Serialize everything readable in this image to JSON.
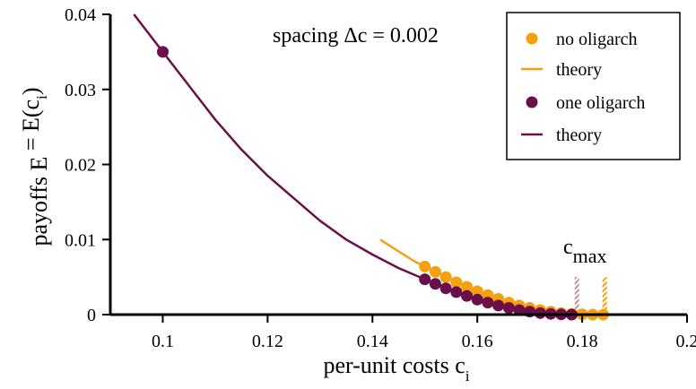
{
  "chart_data": {
    "type": "scatter",
    "xlabel": {
      "text": "per-unit costs  c",
      "sub": "i"
    },
    "ylabel": {
      "text": "payoffs  E",
      "sub1": "i",
      "mid": " = E(c",
      "sub2": "i",
      "end": ")"
    },
    "xlim": [
      0.09,
      0.2
    ],
    "ylim": [
      0,
      0.04
    ],
    "xticks": [
      0.1,
      0.12,
      0.14,
      0.16,
      0.18,
      0.2
    ],
    "xtick_labels": [
      "0.1",
      "0.12",
      "0.14",
      "0.16",
      "0.18",
      "0.2"
    ],
    "yticks": [
      0,
      0.01,
      0.02,
      0.03,
      0.04
    ],
    "ytick_labels": [
      "0",
      "0.01",
      "0.02",
      "0.03",
      "0.04"
    ],
    "grid": false,
    "legend_position": "top-right",
    "annotation": "spacing Δc = 0.002",
    "cmax_label": {
      "main": "c",
      "sub": "max"
    },
    "series": [
      {
        "name": "no oligarch",
        "kind": "points",
        "color": "#F5A00F",
        "x": [
          0.15,
          0.152,
          0.154,
          0.156,
          0.158,
          0.16,
          0.162,
          0.164,
          0.166,
          0.168,
          0.17,
          0.172,
          0.174,
          0.176,
          0.178,
          0.18,
          0.182,
          0.184
        ],
        "y": [
          0.0064,
          0.0057,
          0.005,
          0.0043,
          0.0037,
          0.0031,
          0.0026,
          0.0021,
          0.0016,
          0.0012,
          0.0009,
          0.0006,
          0.0004,
          0.0002,
          0.0001,
          3e-05,
          0.0,
          0.0
        ]
      },
      {
        "name": "theory",
        "kind": "line",
        "color": "#F5A00F",
        "x": [
          0.1415,
          0.145,
          0.148,
          0.15,
          0.155,
          0.16,
          0.165,
          0.17,
          0.175,
          0.179,
          0.184
        ],
        "y": [
          0.01,
          0.0084,
          0.0071,
          0.0064,
          0.0047,
          0.0031,
          0.0018,
          0.0009,
          0.0003,
          0.0001,
          0.0
        ]
      },
      {
        "name": "one oligarch",
        "kind": "points",
        "color": "#6B0F4A",
        "x": [
          0.1,
          0.15,
          0.152,
          0.154,
          0.156,
          0.158,
          0.16,
          0.162,
          0.164,
          0.166,
          0.168,
          0.17,
          0.172,
          0.174,
          0.176,
          0.178
        ],
        "y": [
          0.035,
          0.0047,
          0.0041,
          0.0035,
          0.003,
          0.0025,
          0.002,
          0.0016,
          0.0012,
          0.0009,
          0.0006,
          0.0004,
          0.0002,
          0.0001,
          3e-05,
          0.0
        ]
      },
      {
        "name": "theory",
        "kind": "line",
        "color": "#6B0F4A",
        "x": [
          0.0945,
          0.1,
          0.105,
          0.11,
          0.115,
          0.12,
          0.125,
          0.13,
          0.135,
          0.14,
          0.145,
          0.15,
          0.155,
          0.16,
          0.165,
          0.17,
          0.175,
          0.179
        ],
        "y": [
          0.04,
          0.035,
          0.0305,
          0.026,
          0.022,
          0.0185,
          0.0155,
          0.0125,
          0.01,
          0.008,
          0.0062,
          0.0047,
          0.0033,
          0.0021,
          0.0011,
          0.0004,
          0.0001,
          0.0
        ]
      }
    ],
    "cmax_markers": [
      {
        "x": 0.179,
        "color": "#C9908F",
        "y_top": 0.005
      },
      {
        "x": 0.1843,
        "color": "#F5A00F",
        "y_top": 0.005
      }
    ]
  }
}
